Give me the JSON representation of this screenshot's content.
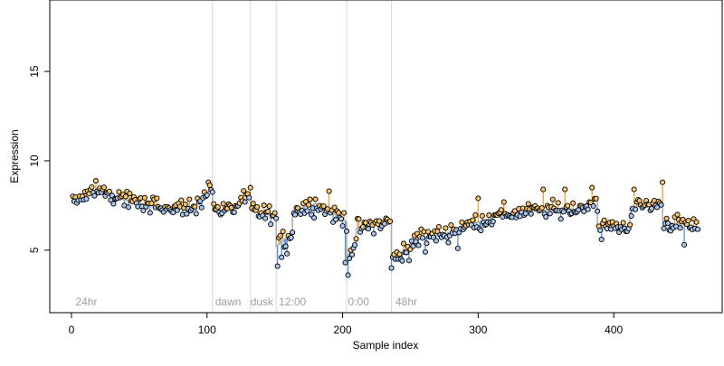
{
  "chart_data": {
    "type": "line",
    "xlabel": "Sample index",
    "ylabel": "Expression",
    "xlim": [
      -16,
      480
    ],
    "ylim": [
      1.5,
      19
    ],
    "x_ticks": [
      0,
      100,
      200,
      300,
      400
    ],
    "y_ticks": [
      5,
      10,
      15
    ],
    "grid": false,
    "markers": "open circles, filled by direction of change",
    "colors": {
      "baseline": "#b0b0b0",
      "increase": "#f0a030",
      "decrease": "#5b8fd6",
      "point_stroke": "#000000",
      "divider": "#d8d8d8",
      "annotation": "#a0a0a0"
    },
    "dividers": [
      104,
      132,
      151,
      203,
      236
    ],
    "annotations": [
      {
        "x": 3,
        "label": "24hr"
      },
      {
        "x": 106,
        "label": "dawn"
      },
      {
        "x": 132,
        "label": "dusk"
      },
      {
        "x": 153,
        "label": "12:00"
      },
      {
        "x": 204,
        "label": "0:00"
      },
      {
        "x": 239,
        "label": "48hr"
      }
    ],
    "segments": [
      {
        "x0": 1,
        "x1": 18,
        "y0": 7.8,
        "y1": 8.3
      },
      {
        "x0": 18,
        "x1": 40,
        "y0": 8.5,
        "y1": 7.8
      },
      {
        "x0": 40,
        "x1": 70,
        "y0": 7.8,
        "y1": 7.3
      },
      {
        "x0": 70,
        "x1": 92,
        "y0": 7.3,
        "y1": 7.4
      },
      {
        "x0": 92,
        "x1": 104,
        "y0": 7.6,
        "y1": 8.5
      },
      {
        "x0": 104,
        "x1": 120,
        "y0": 7.2,
        "y1": 7.3
      },
      {
        "x0": 120,
        "x1": 132,
        "y0": 7.4,
        "y1": 8.0
      },
      {
        "x0": 132,
        "x1": 151,
        "y0": 7.2,
        "y1": 6.9
      },
      {
        "x0": 151,
        "x1": 163,
        "y0": 5.2,
        "y1": 6.0
      },
      {
        "x0": 163,
        "x1": 180,
        "y0": 7.2,
        "y1": 7.6
      },
      {
        "x0": 180,
        "x1": 203,
        "y0": 7.6,
        "y1": 6.6
      },
      {
        "x0": 203,
        "x1": 210,
        "y0": 4.6,
        "y1": 5.5
      },
      {
        "x0": 210,
        "x1": 236,
        "y0": 6.2,
        "y1": 6.6
      },
      {
        "x0": 236,
        "x1": 250,
        "y0": 4.6,
        "y1": 5.0
      },
      {
        "x0": 250,
        "x1": 280,
        "y0": 5.6,
        "y1": 6.0
      },
      {
        "x0": 280,
        "x1": 310,
        "y0": 6.1,
        "y1": 6.8
      },
      {
        "x0": 310,
        "x1": 340,
        "y0": 6.9,
        "y1": 7.2
      },
      {
        "x0": 340,
        "x1": 372,
        "y0": 7.2,
        "y1": 7.3
      },
      {
        "x0": 372,
        "x1": 388,
        "y0": 7.3,
        "y1": 7.8
      },
      {
        "x0": 388,
        "x1": 412,
        "y0": 6.3,
        "y1": 6.3
      },
      {
        "x0": 412,
        "x1": 436,
        "y0": 7.4,
        "y1": 7.6
      },
      {
        "x0": 436,
        "x1": 462,
        "y0": 6.6,
        "y1": 6.3
      }
    ],
    "dips": [
      {
        "x": 152,
        "y": 4.1
      },
      {
        "x": 155,
        "y": 4.6
      },
      {
        "x": 159,
        "y": 4.8
      },
      {
        "x": 202,
        "y": 4.3
      },
      {
        "x": 204,
        "y": 3.6
      },
      {
        "x": 236,
        "y": 4.0
      },
      {
        "x": 239,
        "y": 4.5
      },
      {
        "x": 244,
        "y": 4.4
      },
      {
        "x": 261,
        "y": 4.9
      },
      {
        "x": 285,
        "y": 5.1
      },
      {
        "x": 391,
        "y": 5.6
      },
      {
        "x": 452,
        "y": 5.3
      }
    ],
    "peaks": [
      {
        "x": 101,
        "y": 8.8
      },
      {
        "x": 132,
        "y": 8.5
      },
      {
        "x": 190,
        "y": 8.3
      },
      {
        "x": 300,
        "y": 7.9
      },
      {
        "x": 348,
        "y": 8.4
      },
      {
        "x": 364,
        "y": 8.4
      },
      {
        "x": 384,
        "y": 8.5
      },
      {
        "x": 415,
        "y": 8.4
      },
      {
        "x": 436,
        "y": 8.8
      }
    ]
  }
}
